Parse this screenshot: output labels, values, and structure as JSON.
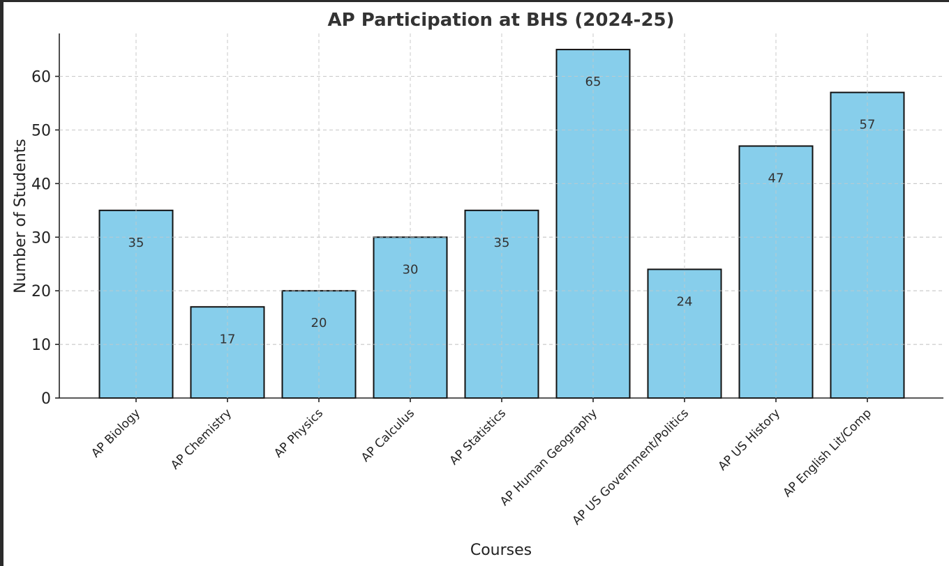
{
  "chart_data": {
    "type": "bar",
    "title": "AP Participation at BHS (2024-25)",
    "xlabel": "Courses",
    "ylabel": "Number of Students",
    "categories": [
      "AP Biology",
      "AP Chemistry",
      "AP Physics",
      "AP Calculus",
      "AP Statistics",
      "AP Human Geography",
      "AP US Government/Politics",
      "AP US History",
      "AP English Lit/Comp"
    ],
    "values": [
      35,
      17,
      20,
      30,
      35,
      65,
      24,
      47,
      57
    ],
    "ylim": [
      0,
      68
    ],
    "yticks": [
      0,
      10,
      20,
      30,
      40,
      50,
      60
    ],
    "grid": true,
    "bar_color": "#87CEEB",
    "edge_color": "#111111"
  }
}
